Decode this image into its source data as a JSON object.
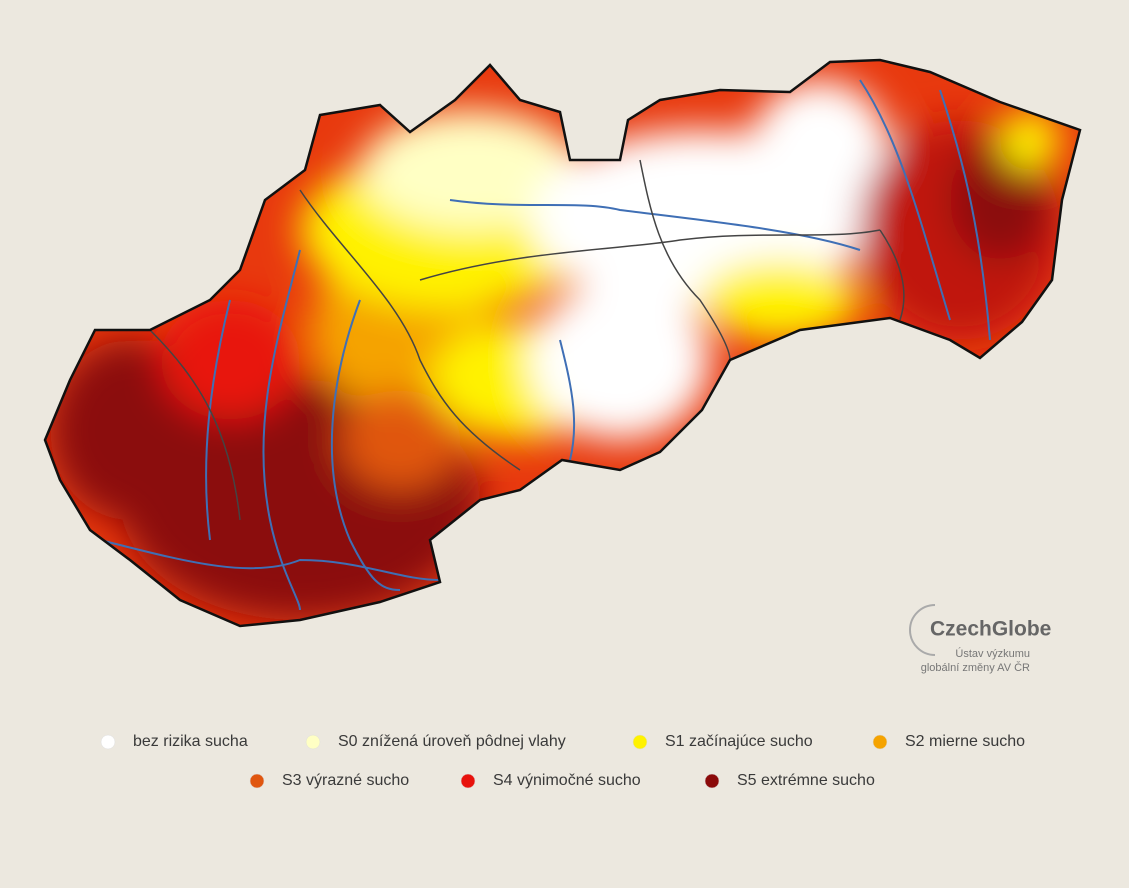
{
  "legend": [
    {
      "label": "bez rizika sucha",
      "color": "#ffffff"
    },
    {
      "label": "S0 znížená úroveň pôdnej vlahy",
      "color": "#ffffc4"
    },
    {
      "label": "S1 začínajúce sucho",
      "color": "#fff200"
    },
    {
      "label": "S2 mierne sucho",
      "color": "#f5a300"
    },
    {
      "label": "S3 výrazné sucho",
      "color": "#e0560f"
    },
    {
      "label": "S4 výnimočné sucho",
      "color": "#e8120c"
    },
    {
      "label": "S5 extrémne sucho",
      "color": "#8b0a0a"
    }
  ],
  "logo": {
    "name": "CzechGlobe",
    "lines": [
      "Ústav výzkumu",
      "globální změny AV ČR"
    ]
  }
}
